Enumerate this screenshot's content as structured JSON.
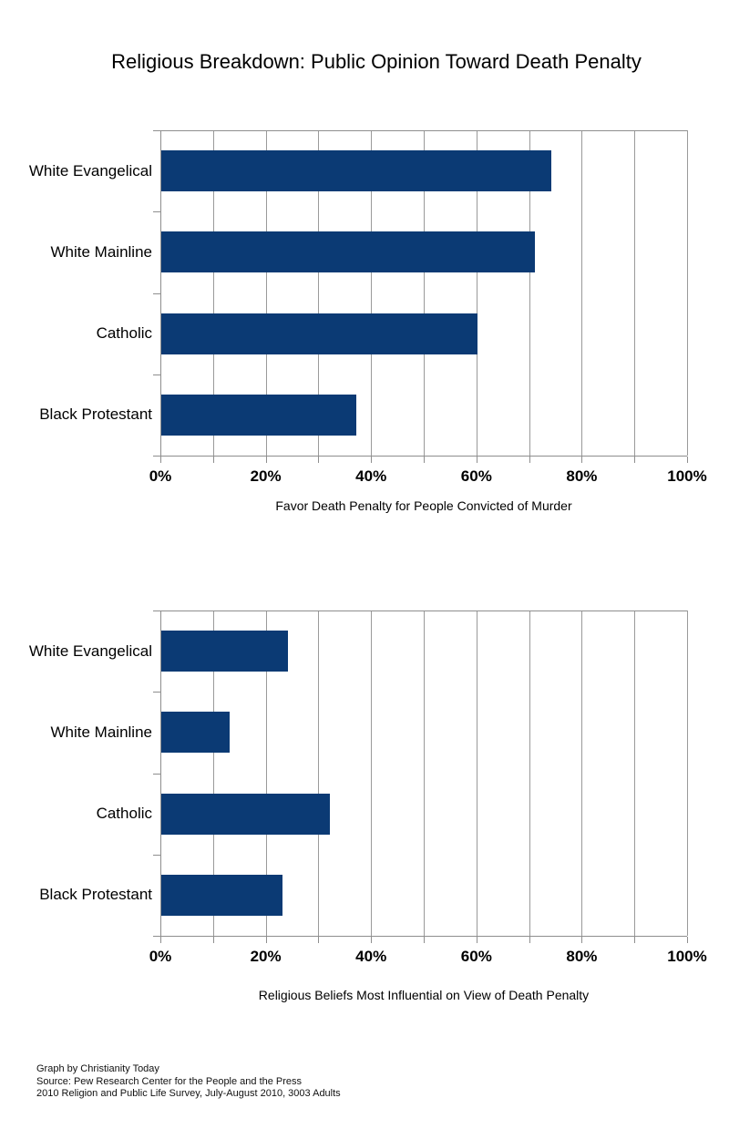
{
  "title": "Religious Breakdown: Public Opinion Toward Death Penalty",
  "colors": {
    "bar": "#0b3a74",
    "grid": "#9a9a9a",
    "axis": "#8e8e8e",
    "text": "#000000"
  },
  "chart_data": [
    {
      "type": "bar",
      "orientation": "horizontal",
      "title": "",
      "xlabel": "Favor Death Penalty for People Convicted of Murder",
      "categories": [
        "White Evangelical",
        "White Mainline",
        "Catholic",
        "Black Protestant"
      ],
      "values": [
        74,
        71,
        60,
        37
      ],
      "xlim": [
        0,
        100
      ],
      "gridline_step": 10,
      "x_ticks": [
        0,
        20,
        40,
        60,
        80,
        100
      ],
      "x_tick_labels": [
        "0%",
        "20%",
        "40%",
        "60%",
        "80%",
        "100%"
      ],
      "grid": true,
      "legend": "none"
    },
    {
      "type": "bar",
      "orientation": "horizontal",
      "title": "",
      "xlabel": "Religious Beliefs Most Influential on View of Death Penalty",
      "categories": [
        "White Evangelical",
        "White Mainline",
        "Catholic",
        "Black Protestant"
      ],
      "values": [
        24,
        13,
        32,
        23
      ],
      "xlim": [
        0,
        100
      ],
      "gridline_step": 10,
      "x_ticks": [
        0,
        20,
        40,
        60,
        80,
        100
      ],
      "x_tick_labels": [
        "0%",
        "20%",
        "40%",
        "60%",
        "80%",
        "100%"
      ],
      "grid": true,
      "legend": "none"
    }
  ],
  "footer": {
    "lines": [
      "Graph by Christianity Today",
      "Source: Pew Research Center for the People and the Press",
      "2010 Religion and Public Life Survey, July-August 2010, 3003 Adults"
    ]
  }
}
